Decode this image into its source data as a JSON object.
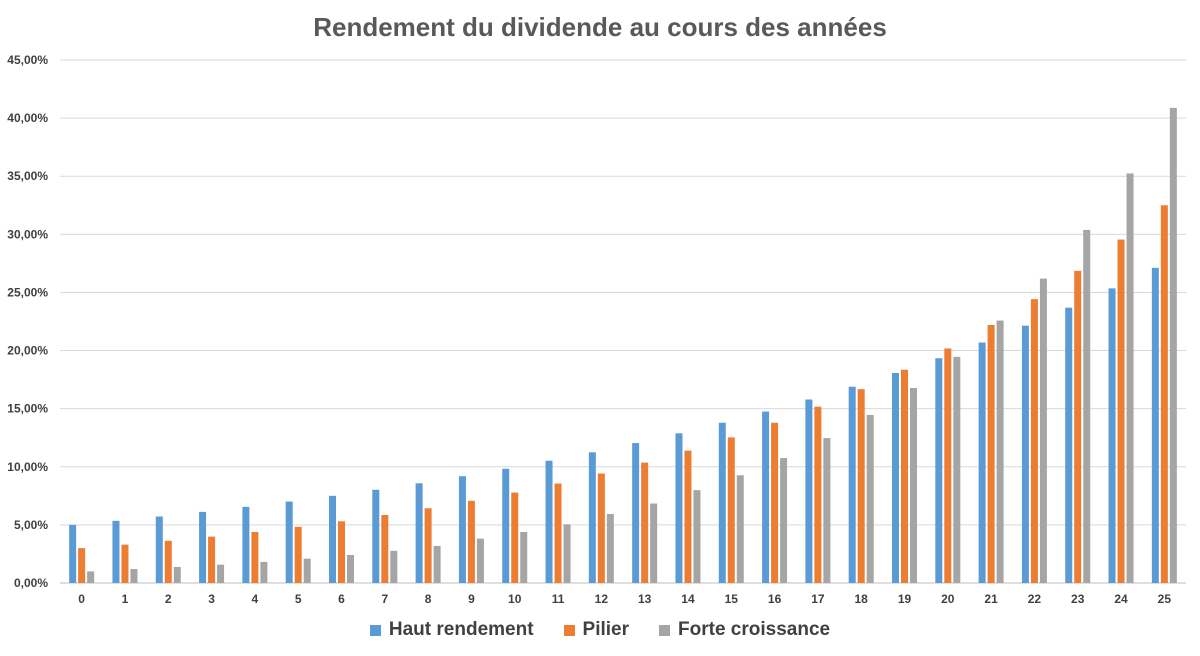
{
  "chart_data": {
    "type": "bar",
    "title": "Rendement du dividende au cours des années",
    "xlabel": "",
    "ylabel": "",
    "categories": [
      "0",
      "1",
      "2",
      "3",
      "4",
      "5",
      "6",
      "7",
      "8",
      "9",
      "10",
      "11",
      "12",
      "13",
      "14",
      "15",
      "16",
      "17",
      "18",
      "19",
      "20",
      "21",
      "22",
      "23",
      "24",
      "25"
    ],
    "ylim": [
      0,
      45
    ],
    "yticks": [
      0,
      5,
      10,
      15,
      20,
      25,
      30,
      35,
      40,
      45
    ],
    "ytick_labels": [
      "0,00%",
      "5,00%",
      "10,00%",
      "15,00%",
      "20,00%",
      "25,00%",
      "30,00%",
      "35,00%",
      "40,00%",
      "45,00%"
    ],
    "grid": true,
    "legend_position": "bottom",
    "series": [
      {
        "name": "Haut rendement",
        "color": "#5b9bd5",
        "values": [
          5.0,
          5.35,
          5.72,
          6.12,
          6.55,
          7.01,
          7.5,
          8.02,
          8.58,
          9.19,
          9.83,
          10.52,
          11.25,
          12.04,
          12.88,
          13.79,
          14.75,
          15.79,
          16.89,
          18.07,
          19.34,
          20.69,
          22.14,
          23.69,
          25.35,
          27.12
        ]
      },
      {
        "name": "Pilier",
        "color": "#ed7d31",
        "values": [
          3.0,
          3.3,
          3.63,
          3.99,
          4.39,
          4.83,
          5.31,
          5.85,
          6.43,
          7.07,
          7.78,
          8.56,
          9.42,
          10.36,
          11.39,
          12.53,
          13.79,
          15.17,
          16.68,
          18.35,
          20.18,
          22.2,
          24.42,
          26.86,
          29.55,
          32.5
        ]
      },
      {
        "name": "Forte croissance",
        "color": "#a5a5a5",
        "values": [
          1.0,
          1.2,
          1.38,
          1.58,
          1.82,
          2.09,
          2.41,
          2.77,
          3.19,
          3.82,
          4.39,
          5.05,
          5.94,
          6.84,
          7.99,
          9.27,
          10.75,
          12.47,
          14.46,
          16.78,
          19.46,
          22.58,
          26.19,
          30.38,
          35.24,
          40.88
        ]
      }
    ]
  }
}
